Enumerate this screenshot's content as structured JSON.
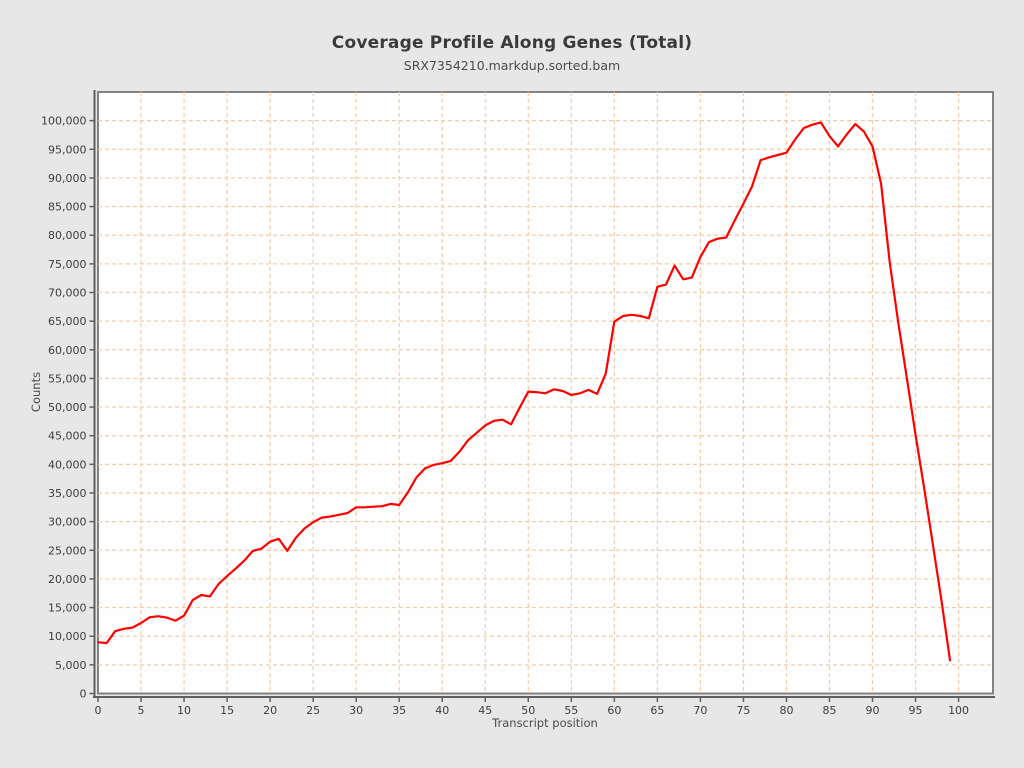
{
  "page": {
    "background": "#e7e7e7"
  },
  "header": {
    "title": "Coverage Profile Along Genes (Total)",
    "subtitle": "SRX7354210.markdup.sorted.bam"
  },
  "chart_data": {
    "type": "line",
    "title": "Coverage Profile Along Genes (Total)",
    "subtitle": "SRX7354210.markdup.sorted.bam",
    "xlabel": "Transcript position",
    "ylabel": "Counts",
    "xlim": [
      0,
      104
    ],
    "ylim": [
      0,
      105000
    ],
    "x_ticks": {
      "start": 0,
      "end": 100,
      "step": 5
    },
    "y_ticks": {
      "start": 0,
      "end": 100000,
      "step": 5000
    },
    "grid": true,
    "legend": "none",
    "colors": {
      "line": "#ff0000",
      "grid": "#f5cba6",
      "plot_background": "#fefefe",
      "plot_border": "#828282",
      "axis": "#5f5f5f",
      "tick_text": "#3d3d3d",
      "background": "#e7e7e7"
    },
    "series": [
      {
        "name": "Coverage",
        "color": "#ff0000",
        "x_start": 0,
        "x_step": 1,
        "values": [
          8950,
          8800,
          10900,
          11300,
          11500,
          12300,
          13300,
          13500,
          13250,
          12700,
          13600,
          16300,
          17200,
          16950,
          19100,
          20500,
          21800,
          23200,
          24900,
          25300,
          26500,
          27000,
          24900,
          27200,
          28800,
          29900,
          30700,
          30900,
          31200,
          31500,
          32500,
          32500,
          32600,
          32700,
          33100,
          32900,
          35100,
          37700,
          39300,
          39900,
          40200,
          40600,
          42200,
          44200,
          45500,
          46800,
          47600,
          47800,
          47000,
          49900,
          52700,
          52600,
          52400,
          53100,
          52800,
          52100,
          52400,
          53000,
          52300,
          55800,
          64900,
          65900,
          66100,
          65900,
          65500,
          71000,
          71400,
          74700,
          72300,
          72600,
          76200,
          78800,
          79400,
          79600,
          82600,
          85500,
          88500,
          93100,
          93600,
          94000,
          94400,
          96700,
          98700,
          99300,
          99700,
          97300,
          95500,
          97600,
          99400,
          98100,
          95500,
          89000,
          75300,
          64700,
          55000,
          45200,
          35800,
          26100,
          16300,
          5800
        ]
      }
    ]
  }
}
